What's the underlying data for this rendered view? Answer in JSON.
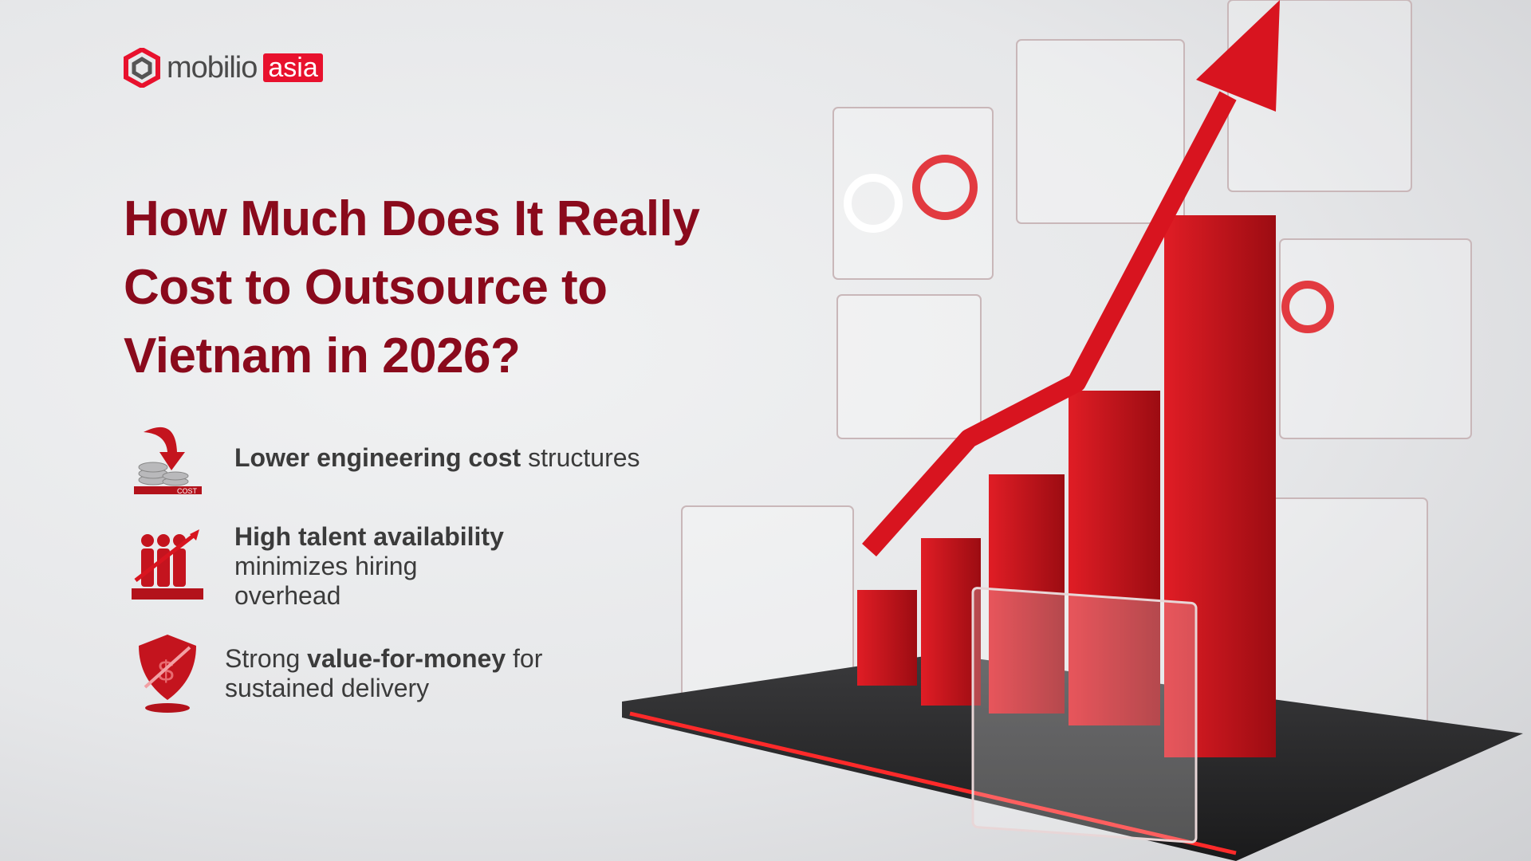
{
  "logo": {
    "word": "mobilio",
    "accent": "asia",
    "brand_color": "#e8112d"
  },
  "title": "How Much Does It Really Cost to Outsource to Vietnam in 2026?",
  "bullets": [
    {
      "icon": "coins-down-arrow-icon",
      "bold": "Lower engineering cost",
      "rest": " structures",
      "badge": "COST"
    },
    {
      "icon": "team-growth-icon",
      "bold": "High talent availability",
      "rest": " minimizes hiring overhead"
    },
    {
      "icon": "shield-dollar-icon",
      "pre": "Strong ",
      "bold": "value-for-money",
      "rest": " for sustained delivery"
    }
  ],
  "colors": {
    "title": "#8a0a1c",
    "text": "#3b3b3b",
    "accent": "#d8141f"
  }
}
